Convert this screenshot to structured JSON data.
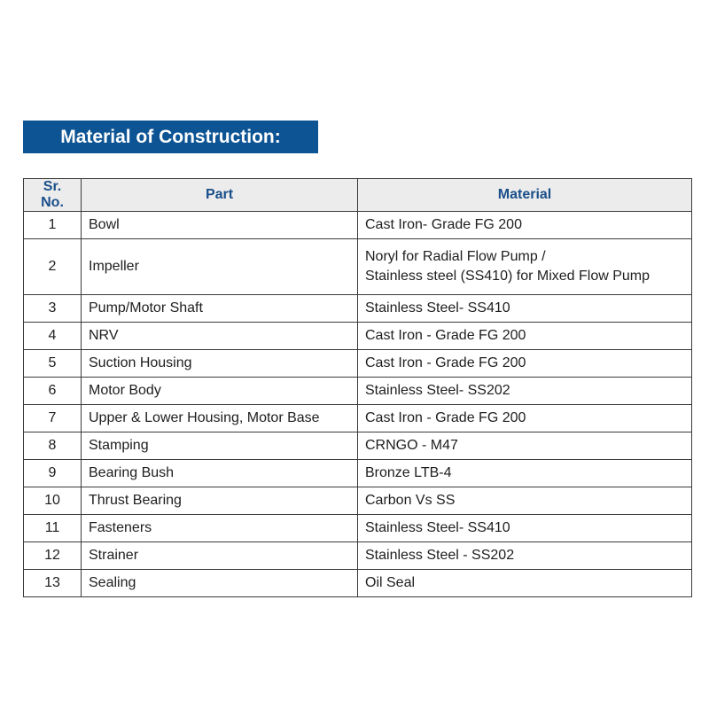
{
  "title": "Material of Construction:",
  "table": {
    "headers": [
      "Sr. No.",
      "Part",
      "Material"
    ],
    "rows": [
      {
        "sr": "1",
        "part": "Bowl",
        "material": [
          "Cast Iron- Grade FG 200"
        ]
      },
      {
        "sr": "2",
        "part": "Impeller",
        "material": [
          "Noryl for Radial Flow Pump /",
          "Stainless steel (SS410) for Mixed Flow Pump"
        ]
      },
      {
        "sr": "3",
        "part": "Pump/Motor Shaft",
        "material": [
          "Stainless Steel- SS410"
        ]
      },
      {
        "sr": "4",
        "part": "NRV",
        "material": [
          "Cast Iron - Grade FG 200"
        ]
      },
      {
        "sr": "5",
        "part": "Suction Housing",
        "material": [
          "Cast Iron - Grade FG 200"
        ]
      },
      {
        "sr": "6",
        "part": "Motor Body",
        "material": [
          "Stainless Steel- SS202"
        ]
      },
      {
        "sr": "7",
        "part": "Upper & Lower Housing, Motor Base",
        "material": [
          "Cast Iron - Grade FG 200"
        ]
      },
      {
        "sr": "8",
        "part": "Stamping",
        "material": [
          "CRNGO - M47"
        ]
      },
      {
        "sr": "9",
        "part": "Bearing Bush",
        "material": [
          "Bronze LTB-4"
        ]
      },
      {
        "sr": "10",
        "part": "Thrust Bearing",
        "material": [
          "Carbon Vs SS"
        ]
      },
      {
        "sr": "11",
        "part": "Fasteners",
        "material": [
          "Stainless Steel- SS410"
        ]
      },
      {
        "sr": "12",
        "part": "Strainer",
        "material": [
          "Stainless Steel - SS202"
        ]
      },
      {
        "sr": "13",
        "part": "Sealing",
        "material": [
          "Oil Seal"
        ]
      }
    ]
  },
  "colors": {
    "title_bg": "#0d5494",
    "header_text": "#1a4f8a",
    "header_bg": "#ececec"
  }
}
